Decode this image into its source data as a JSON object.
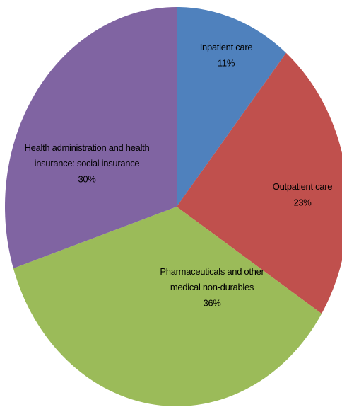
{
  "chart_data": {
    "type": "pie",
    "categories": [
      "Inpatient care",
      "Outpatient care",
      "Pharmaceuticals and other medical non-durables",
      "Health administration and health insurance: social insurance"
    ],
    "values": [
      11,
      23,
      36,
      30
    ],
    "value_labels": [
      "11%",
      "23%",
      "36%",
      "30%"
    ],
    "colors": [
      "#4f81bd",
      "#c0504d",
      "#9bbb59",
      "#8064a2"
    ]
  }
}
